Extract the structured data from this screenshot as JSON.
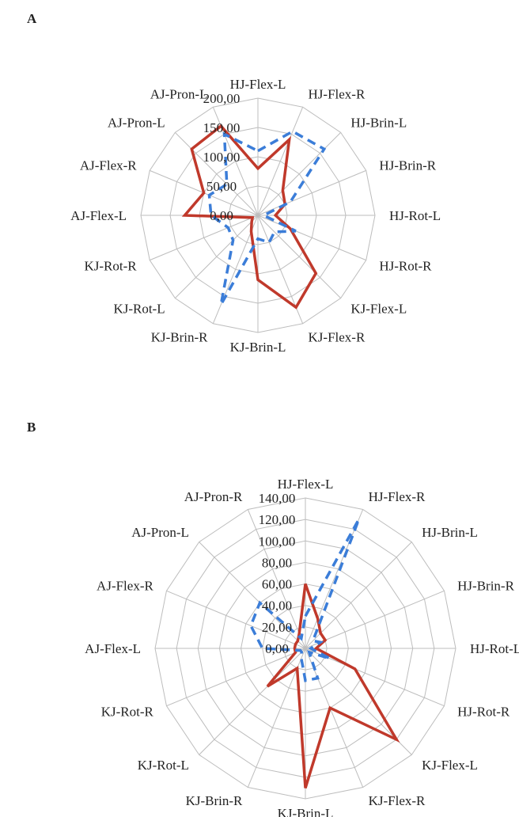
{
  "chart_data": [
    {
      "panel": "A",
      "type": "radar",
      "categories": [
        "HJ-Flex-L",
        "HJ-Flex-R",
        "HJ-Brin-L",
        "HJ-Brin-R",
        "HJ-Rot-L",
        "HJ-Rot-R",
        "KJ-Flex-L",
        "KJ-Flex-R",
        "KJ-Brin-L",
        "KJ-Brin-R",
        "KJ-Rot-L",
        "KJ-Rot-R",
        "AJ-Flex-L",
        "AJ-Flex-R",
        "AJ-Pron-L",
        "AJ-Pron-L"
      ],
      "ticks": [
        "0,00",
        "50,00",
        "100,00",
        "150,00",
        "200,00"
      ],
      "ylim": [
        0,
        200
      ],
      "series": [
        {
          "style": "solid",
          "color": "#c0392b",
          "values": [
            80,
            140,
            60,
            50,
            30,
            60,
            140,
            170,
            110,
            30,
            15,
            10,
            125,
            100,
            160,
            165
          ]
        },
        {
          "style": "dashed",
          "color": "#3b7dd8",
          "values": [
            110,
            155,
            160,
            60,
            10,
            70,
            40,
            50,
            40,
            165,
            60,
            55,
            80,
            90,
            75,
            150
          ]
        }
      ]
    },
    {
      "panel": "B",
      "type": "radar",
      "categories": [
        "HJ-Flex-L",
        "HJ-Flex-R",
        "HJ-Brin-L",
        "HJ-Brin-R",
        "HJ-Rot-L",
        "HJ-Rot-R",
        "KJ-Flex-L",
        "KJ-Flex-R",
        "KJ-Brin-L",
        "KJ-Brin-R",
        "KJ-Rot-L",
        "KJ-Rot-R",
        "AJ-Flex-L",
        "AJ-Flex-R",
        "AJ-Pron-L",
        "AJ-Pron-R"
      ],
      "ticks": [
        "0,00",
        "20,00",
        "40,00",
        "60,00",
        "80,00",
        "100,00",
        "120,00",
        "140,00"
      ],
      "ylim": [
        0,
        140
      ],
      "series": [
        {
          "style": "solid",
          "color": "#c0392b",
          "values": [
            60,
            30,
            20,
            20,
            10,
            50,
            120,
            60,
            130,
            20,
            50,
            10,
            10,
            10,
            10,
            15
          ]
        },
        {
          "style": "dashed",
          "color": "#3b7dd8",
          "values": [
            30,
            130,
            10,
            15,
            5,
            25,
            5,
            30,
            30,
            10,
            5,
            5,
            40,
            55,
            60,
            10
          ]
        }
      ]
    }
  ]
}
